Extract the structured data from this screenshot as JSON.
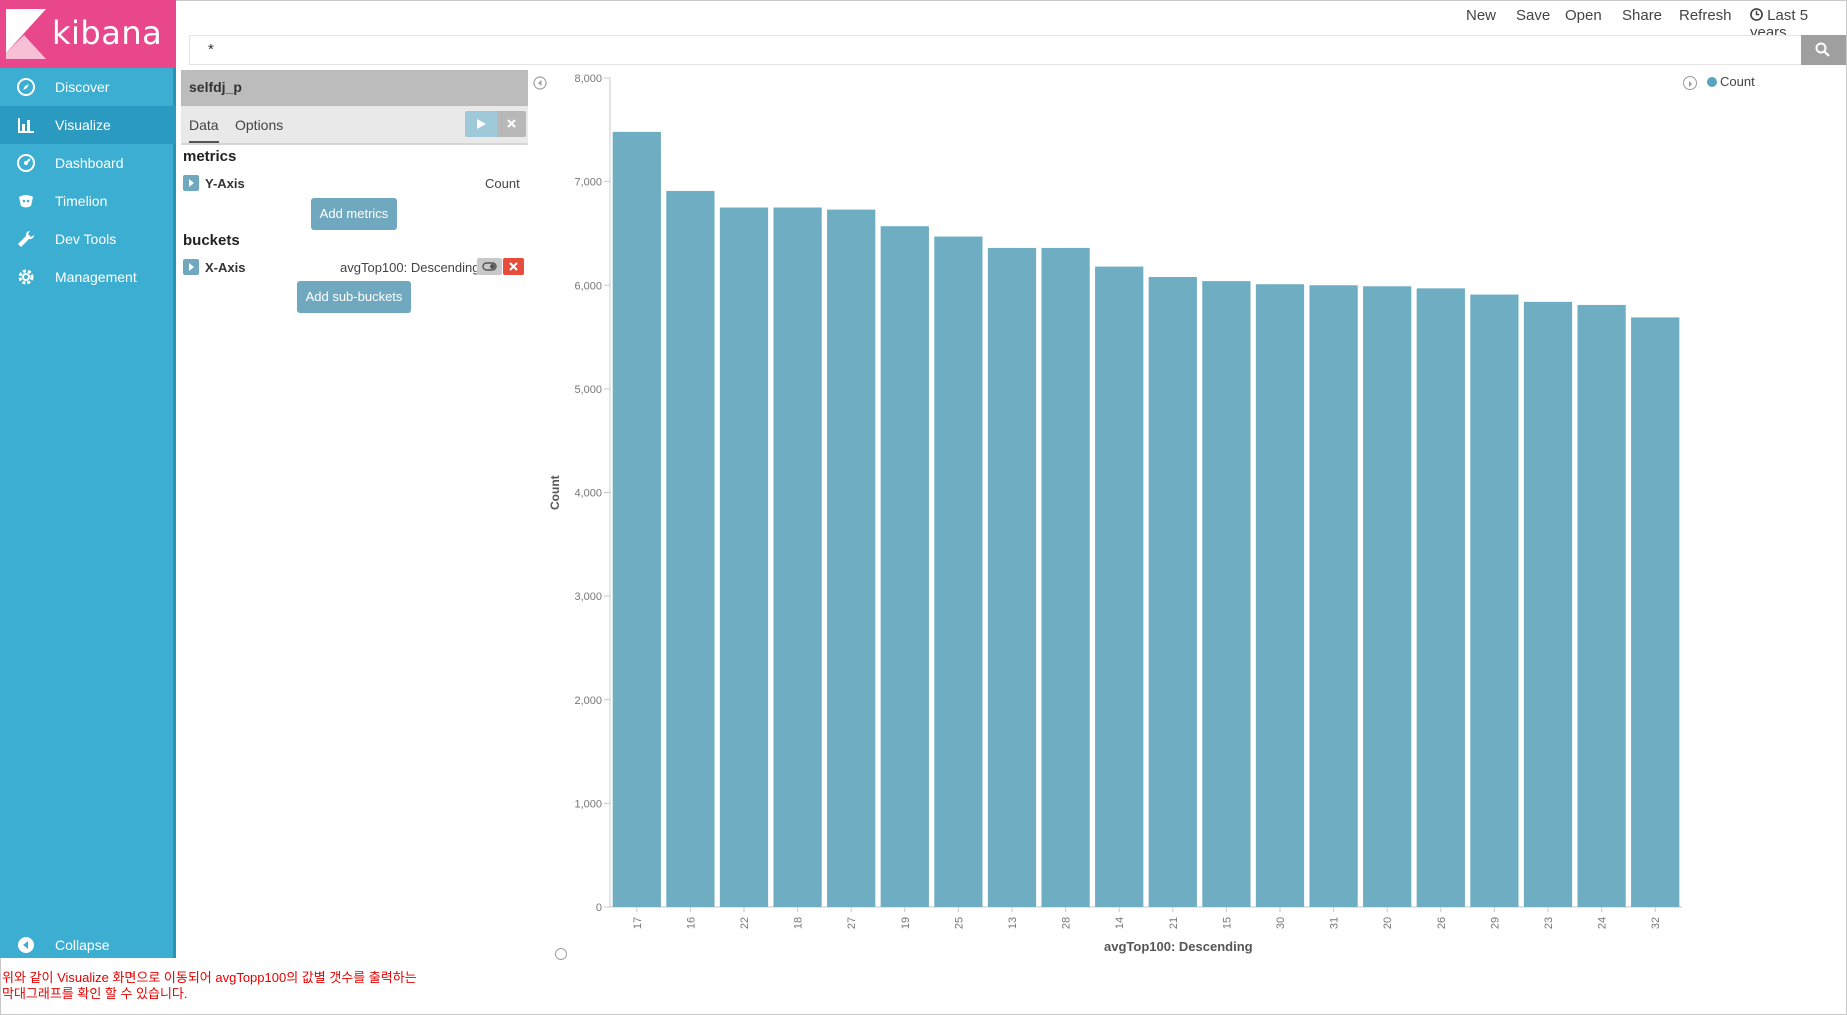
{
  "brand": {
    "name": "kibana"
  },
  "nav": {
    "items": [
      {
        "label": "Discover",
        "icon": "compass-icon",
        "active": false
      },
      {
        "label": "Visualize",
        "icon": "bar-chart-icon",
        "active": true
      },
      {
        "label": "Dashboard",
        "icon": "dashboard-icon",
        "active": false
      },
      {
        "label": "Timelion",
        "icon": "timelion-icon",
        "active": false
      },
      {
        "label": "Dev Tools",
        "icon": "wrench-icon",
        "active": false
      },
      {
        "label": "Management",
        "icon": "gear-icon",
        "active": false
      }
    ],
    "collapse_label": "Collapse"
  },
  "topmenu": {
    "new": "New",
    "save": "Save",
    "open": "Open",
    "share": "Share",
    "refresh": "Refresh",
    "timepicker": "Last 5 years"
  },
  "search": {
    "query": "*"
  },
  "editor": {
    "index_pattern": "selfdj_p",
    "tabs": [
      "Data",
      "Options"
    ],
    "metrics_title": "metrics",
    "y_axis_label": "Y-Axis",
    "y_axis_value": "Count",
    "add_metrics": "Add metrics",
    "buckets_title": "buckets",
    "x_axis_label": "X-Axis",
    "x_axis_value": "avgTop100: Descending",
    "add_sub_buckets": "Add sub-buckets"
  },
  "colors": {
    "sidebar": "#3caed2",
    "brand": "#e8488b",
    "bar": "#6fadc2",
    "remove": "#e74c3c"
  },
  "chart_data": {
    "type": "bar",
    "categories": [
      "17",
      "16",
      "22",
      "18",
      "27",
      "19",
      "25",
      "13",
      "28",
      "14",
      "21",
      "15",
      "30",
      "31",
      "20",
      "26",
      "29",
      "23",
      "24",
      "32"
    ],
    "values": [
      7480,
      6910,
      6750,
      6750,
      6730,
      6570,
      6470,
      6360,
      6360,
      6180,
      6080,
      6040,
      6010,
      6000,
      5990,
      5970,
      5910,
      5840,
      5810,
      5690
    ],
    "xlabel": "avgTop100: Descending",
    "ylabel": "Count",
    "ylim": [
      0,
      8000
    ],
    "yticks": [
      "0",
      "1,000",
      "2,000",
      "3,000",
      "4,000",
      "5,000",
      "6,000",
      "7,000",
      "8,000"
    ],
    "legend": {
      "position": "top-right",
      "entries": [
        "Count"
      ]
    },
    "grid": false
  },
  "caption": {
    "line1": "위와 같이 Visualize 화면으로 이동되어 avgTopp100의 값별 갯수를 출력하는",
    "line2": "막대그래프를 확인 할 수 있습니다."
  }
}
